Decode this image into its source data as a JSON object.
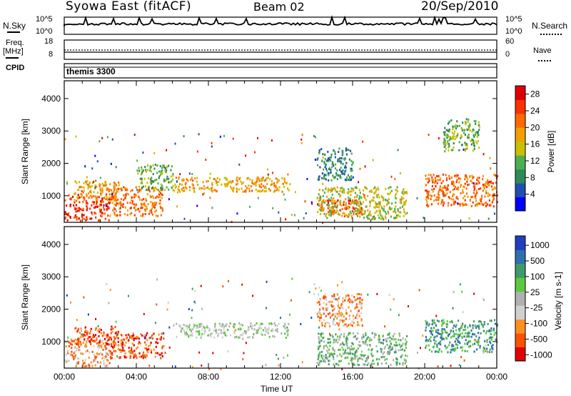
{
  "header": {
    "station": "Syowa East (fitACF)",
    "beam": "Beam 02",
    "date": "20/Sep/2010"
  },
  "top_panels": {
    "nsky_label": "N.Sky",
    "nsearch_label": "N.Search",
    "nsky_ticks": [
      "10^5",
      "10^0"
    ],
    "nsearch_ticks": [
      "10^5",
      "10^0"
    ],
    "freq_label": "Freq.",
    "freq_unit": "[MHz]",
    "freq_ticks": [
      "18",
      "8"
    ],
    "nave_label": "Nave",
    "nave_ticks": [
      "60",
      "0"
    ],
    "cpid_label": "CPID",
    "cpid_value": "themis 3300"
  },
  "colors": {
    "power_scale": [
      "#0000ff",
      "#1f4fb0",
      "#2e8b57",
      "#4caf50",
      "#c8c000",
      "#f0a000",
      "#ff6a00",
      "#ff3000",
      "#e00000"
    ],
    "velocity_scale": [
      "#1f3fc0",
      "#2e6fb0",
      "#3f9a6a",
      "#5cc840",
      "#b0b0b0",
      "#d0d0d0",
      "#ff9020",
      "#ff5000",
      "#e00000"
    ],
    "groundscatter": "#c8c8c0"
  },
  "chart_data": [
    {
      "type": "heatmap",
      "name": "power",
      "xlabel": "",
      "ylabel": "Slant Range [km]",
      "xlim_hours": [
        0,
        24
      ],
      "ylim_km": [
        180,
        4550
      ],
      "yticks": [
        1000,
        2000,
        3000,
        4000
      ],
      "colorbar": {
        "label": "Power [dB]",
        "ticks": [
          4,
          8,
          12,
          16,
          20,
          24,
          28
        ],
        "range": [
          0,
          30
        ]
      },
      "regions": [
        {
          "t0": 0.0,
          "t1": 2.5,
          "r0": 250,
          "r1": 1100,
          "level": 7
        },
        {
          "t0": 0.5,
          "t1": 3.0,
          "r0": 900,
          "r1": 1500,
          "level": 5
        },
        {
          "t0": 2.5,
          "t1": 5.5,
          "r0": 400,
          "r1": 1300,
          "level": 6
        },
        {
          "t0": 4.0,
          "t1": 6.0,
          "r0": 1200,
          "r1": 2000,
          "level": 3
        },
        {
          "t0": 6.0,
          "t1": 12.5,
          "r0": 1150,
          "r1": 1600,
          "level": 5
        },
        {
          "t0": 14.0,
          "t1": 16.5,
          "r0": 400,
          "r1": 900,
          "level": 7
        },
        {
          "t0": 14.0,
          "t1": 19.0,
          "r0": 300,
          "r1": 1300,
          "level": 4
        },
        {
          "t0": 14.0,
          "t1": 16.0,
          "r0": 1500,
          "r1": 2500,
          "level": 2
        },
        {
          "t0": 20.0,
          "t1": 24.0,
          "r0": 700,
          "r1": 1700,
          "level": 6
        },
        {
          "t0": 21.0,
          "t1": 23.0,
          "r0": 2400,
          "r1": 3400,
          "level": 3
        }
      ]
    },
    {
      "type": "heatmap",
      "name": "velocity",
      "xlabel": "Time UT",
      "ylabel": "Slant Range [km]",
      "xlim_hours": [
        0,
        24
      ],
      "ylim_km": [
        180,
        4550
      ],
      "xticks": [
        "00:00",
        "04:00",
        "08:00",
        "12:00",
        "16:00",
        "20:00",
        "00:00"
      ],
      "yticks": [
        1000,
        2000,
        3000,
        4000
      ],
      "colorbar": {
        "label": "Velocity [m s-1]",
        "ticks": [
          1000,
          500,
          100,
          25,
          -25,
          -100,
          -500,
          -1000
        ]
      },
      "regions": [
        {
          "t0": 0.0,
          "t1": 2.5,
          "r0": 250,
          "r1": 1100,
          "level": 6
        },
        {
          "t0": 0.5,
          "t1": 3.0,
          "r0": 900,
          "r1": 1500,
          "level": 7
        },
        {
          "t0": 2.5,
          "t1": 5.5,
          "r0": 500,
          "r1": 1300,
          "level": 7
        },
        {
          "t0": 6.0,
          "t1": 12.5,
          "r0": 1150,
          "r1": 1600,
          "level": 4
        },
        {
          "t0": 14.0,
          "t1": 16.5,
          "r0": 1500,
          "r1": 2500,
          "level": 6
        },
        {
          "t0": 14.0,
          "t1": 19.0,
          "r0": 300,
          "r1": 1300,
          "level": 3
        },
        {
          "t0": 20.0,
          "t1": 24.0,
          "r0": 700,
          "r1": 1700,
          "level": 2
        }
      ]
    }
  ]
}
